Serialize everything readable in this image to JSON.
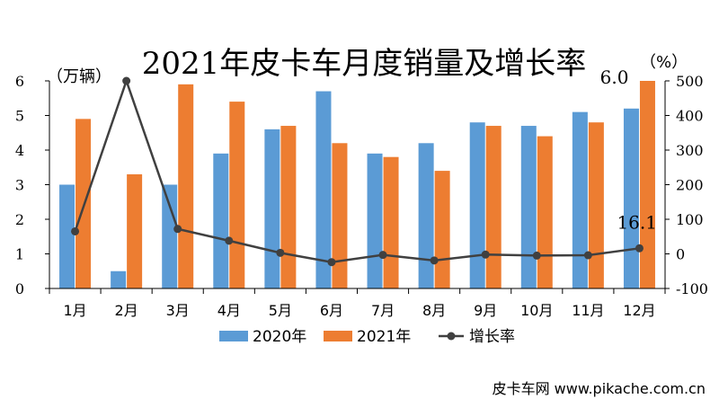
{
  "chart_data": {
    "type": "bar",
    "title": "2021年皮卡车月度销量及增长率",
    "categories": [
      "1月",
      "2月",
      "3月",
      "4月",
      "5月",
      "6月",
      "7月",
      "8月",
      "9月",
      "10月",
      "11月",
      "12月"
    ],
    "series": [
      {
        "name": "2020年",
        "type": "bar",
        "axis": "left",
        "color": "#5B9BD5",
        "values": [
          3.0,
          0.5,
          3.0,
          3.9,
          4.6,
          5.7,
          3.9,
          4.2,
          4.8,
          4.7,
          5.1,
          5.2
        ]
      },
      {
        "name": "2021年",
        "type": "bar",
        "axis": "left",
        "color": "#ED7D31",
        "values": [
          4.9,
          3.3,
          5.9,
          5.4,
          4.7,
          4.2,
          3.8,
          3.4,
          4.7,
          4.4,
          4.8,
          6.0
        ]
      },
      {
        "name": "增长率",
        "type": "line",
        "axis": "right",
        "color": "#404040",
        "values": [
          65,
          500,
          72,
          38,
          3,
          -24,
          -3,
          -19,
          -2,
          -5,
          -4,
          16.1
        ]
      }
    ],
    "left_axis": {
      "unit": "（万辆）",
      "ylim": [
        0,
        6
      ],
      "ticks": [
        "0",
        "1",
        "2",
        "3",
        "4",
        "5",
        "6"
      ]
    },
    "right_axis": {
      "unit": "（%）",
      "ylim": [
        -100,
        500
      ],
      "ticks": [
        "-100",
        "0",
        "100",
        "200",
        "300",
        "400",
        "500"
      ]
    },
    "data_labels": [
      "6.0",
      "16.1"
    ],
    "grid": false,
    "legend_position": "bottom"
  },
  "footer": "皮卡车网  www.pikache.com.cn"
}
